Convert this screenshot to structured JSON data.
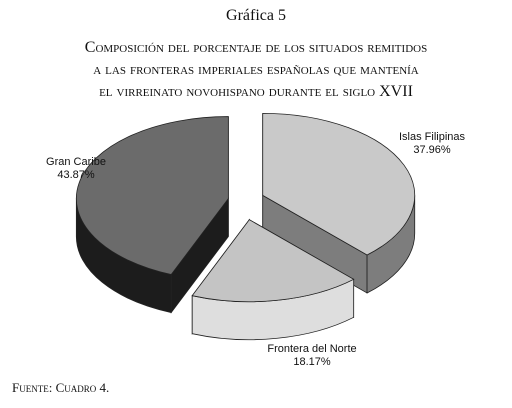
{
  "chart_data": {
    "type": "pie",
    "label": "Gráfica 5",
    "title": [
      "Composición del porcentaje de los situados remitidos",
      "a las fronteras imperiales españolas que mantenía",
      "el virreinato novohispano durante el siglo XVII"
    ],
    "categories": [
      "Islas Filipinas",
      "Frontera del Norte",
      "Gran Caribe"
    ],
    "values": [
      37.96,
      18.17,
      43.87
    ],
    "value_labels": [
      "37.96%",
      "18.17%",
      "43.87%"
    ],
    "colors": [
      "#c9c9c9",
      "#c4c4c4",
      "#6b6b6b"
    ],
    "side_colors": [
      "#7d7d7d",
      "#dedede",
      "#1c1c1c"
    ],
    "source": "Fuente: Cuadro 4."
  }
}
